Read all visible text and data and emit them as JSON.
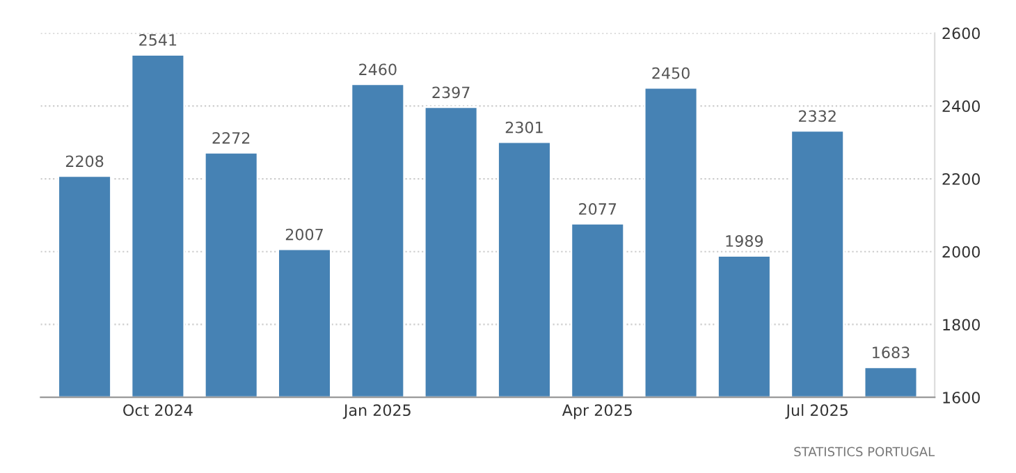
{
  "chart_data": {
    "type": "bar",
    "categories": [
      null,
      "Oct 2024",
      null,
      null,
      "Jan 2025",
      null,
      null,
      "Apr 2025",
      null,
      null,
      "Jul 2025",
      null
    ],
    "values": [
      2208,
      2541,
      2272,
      2007,
      2460,
      2397,
      2301,
      2077,
      2450,
      1989,
      2332,
      1683
    ],
    "color": "#4682b4",
    "ylim": [
      1600,
      2600
    ],
    "yticks": [
      1600,
      1800,
      2000,
      2200,
      2400,
      2600
    ],
    "grid": "y",
    "data_labels": true,
    "annotations": [
      "STATISTICS PORTUGAL"
    ]
  }
}
